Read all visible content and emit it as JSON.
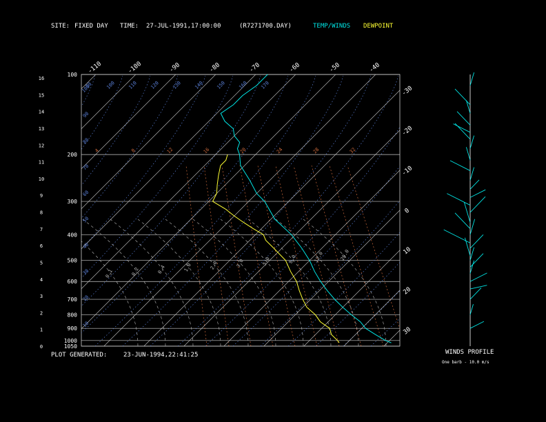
{
  "header": {
    "site_label": "SITE:",
    "site_value": "FIXED DAY",
    "time_label": "TIME:",
    "time_value": "27-JUL-1991,17:00:00",
    "file": "(R7271700.DAY)",
    "legend_temp": "TEMP/WINDS",
    "legend_dew": "DEWPOINT"
  },
  "footer": {
    "generated_label": "PLOT GENERATED:",
    "generated_value": "23-JUN-1994,22:41:25"
  },
  "colors": {
    "temp": "#00e5e5",
    "dew": "#ffff33",
    "isotherm": "#cccccc",
    "isobar": "#cccccc",
    "dry_adiabat": "#5a7fd6",
    "mixing": "#cc6a3c",
    "moist": "#bbbbbb",
    "text": "#ffffff"
  },
  "chart_data": {
    "type": "line",
    "title": "",
    "y_pressure_ticks": [
      "100",
      "200",
      "300",
      "400",
      "500",
      "600",
      "700",
      "800",
      "900",
      "1000",
      "1050"
    ],
    "y_pressure_values": [
      100,
      200,
      300,
      400,
      500,
      600,
      700,
      800,
      900,
      1000,
      1050
    ],
    "y_height_ticks": [
      "16",
      "15",
      "14",
      "13",
      "12",
      "11",
      "10",
      "9",
      "8",
      "7",
      "6",
      "5",
      "4",
      "3",
      "2",
      "1",
      "0"
    ],
    "isotherm_top_labels": [
      "-110",
      "-100",
      "-90",
      "-80",
      "-70",
      "-60",
      "-50",
      "-40"
    ],
    "isotherm_right_labels": [
      "-30",
      "-20",
      "-10",
      "0",
      "10",
      "20",
      "30"
    ],
    "theta_labels": [
      "90",
      "100",
      "110",
      "120",
      "130",
      "140",
      "150",
      "160",
      "170"
    ],
    "dry_adiabat_labels": [
      "100",
      "90",
      "80",
      "70",
      "60",
      "50",
      "40",
      "30",
      "20",
      "10"
    ],
    "mixing_labels": [
      "4",
      "8",
      "12",
      "16",
      "20",
      "24",
      "28",
      "32"
    ],
    "moist_labels": [
      "0.1",
      "0.2",
      "0.4",
      "1.0",
      "2.0",
      "3.0",
      "5.0",
      "8.0",
      "12.0",
      "20.0"
    ],
    "series": [
      {
        "name": "TEMP/WINDS",
        "points": [
          [
            100,
            -67
          ],
          [
            110,
            -67
          ],
          [
            120,
            -68
          ],
          [
            130,
            -68
          ],
          [
            140,
            -69
          ],
          [
            150,
            -66
          ],
          [
            160,
            -62
          ],
          [
            170,
            -60
          ],
          [
            180,
            -57
          ],
          [
            190,
            -56
          ],
          [
            200,
            -54
          ],
          [
            220,
            -51
          ],
          [
            250,
            -45
          ],
          [
            280,
            -40
          ],
          [
            300,
            -36
          ],
          [
            350,
            -29
          ],
          [
            400,
            -21
          ],
          [
            450,
            -15
          ],
          [
            500,
            -10
          ],
          [
            550,
            -6
          ],
          [
            600,
            -2
          ],
          [
            650,
            2
          ],
          [
            700,
            6
          ],
          [
            750,
            10
          ],
          [
            800,
            14
          ],
          [
            850,
            18
          ],
          [
            900,
            21
          ],
          [
            950,
            25
          ],
          [
            1000,
            29
          ],
          [
            1020,
            31
          ]
        ]
      },
      {
        "name": "DEWPOINT",
        "points": [
          [
            200,
            -57
          ],
          [
            210,
            -56
          ],
          [
            220,
            -56
          ],
          [
            240,
            -54
          ],
          [
            260,
            -52
          ],
          [
            280,
            -50
          ],
          [
            300,
            -49
          ],
          [
            320,
            -44
          ],
          [
            340,
            -40
          ],
          [
            360,
            -36
          ],
          [
            380,
            -32
          ],
          [
            400,
            -28
          ],
          [
            420,
            -26
          ],
          [
            450,
            -22
          ],
          [
            500,
            -16
          ],
          [
            550,
            -12
          ],
          [
            600,
            -8
          ],
          [
            650,
            -5
          ],
          [
            700,
            -2
          ],
          [
            750,
            1
          ],
          [
            800,
            5
          ],
          [
            850,
            8
          ],
          [
            900,
            12
          ],
          [
            950,
            14
          ],
          [
            1000,
            17
          ],
          [
            1020,
            18
          ]
        ]
      }
    ],
    "winds_label": "WINDS PROFILE",
    "winds_note": "One barb - 10.0 m/s",
    "winds": [
      [
        110,
        20,
        20
      ],
      [
        130,
        30,
        40
      ],
      [
        140,
        25,
        20
      ],
      [
        155,
        30,
        30
      ],
      [
        165,
        35,
        20
      ],
      [
        175,
        30,
        40
      ],
      [
        190,
        20,
        20
      ],
      [
        210,
        25,
        20
      ],
      [
        230,
        35,
        30
      ],
      [
        250,
        20,
        20
      ],
      [
        270,
        15,
        10
      ],
      [
        290,
        10,
        15
      ],
      [
        310,
        35,
        40
      ],
      [
        330,
        15,
        40
      ],
      [
        360,
        25,
        50
      ],
      [
        380,
        30,
        40
      ],
      [
        400,
        20,
        30
      ],
      [
        430,
        35,
        50
      ],
      [
        450,
        15,
        30
      ],
      [
        480,
        25,
        40
      ],
      [
        500,
        20,
        20
      ],
      [
        530,
        15,
        30
      ],
      [
        560,
        20,
        20
      ],
      [
        600,
        10,
        20
      ],
      [
        640,
        5,
        10
      ],
      [
        700,
        15,
        20
      ],
      [
        800,
        20,
        10
      ],
      [
        900,
        10,
        10
      ]
    ]
  }
}
